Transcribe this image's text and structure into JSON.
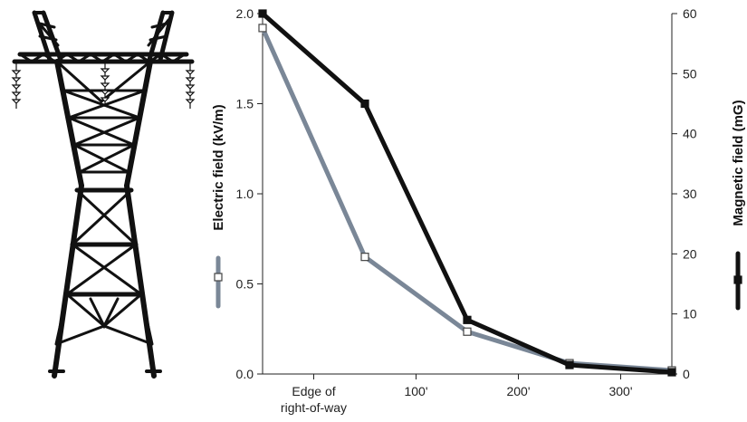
{
  "chart_data": {
    "type": "line",
    "x_categories": [
      "Edge of right-of-way",
      "100'",
      "200'",
      "300'"
    ],
    "x_tick_lines": [
      [
        "Edge of",
        "right-of-way"
      ],
      [
        "100'"
      ],
      [
        "200'"
      ],
      [
        "300'"
      ]
    ],
    "x_tick_positions": [
      0,
      100,
      200,
      300
    ],
    "xlim": [
      -50,
      350
    ],
    "left_axis": {
      "label": "Electric field (kV/m)",
      "ylim": [
        0,
        2.0
      ],
      "ticks": [
        "0.0",
        "0.5",
        "1.0",
        "1.5",
        "2.0"
      ],
      "tick_values": [
        0,
        0.5,
        1.0,
        1.5,
        2.0
      ]
    },
    "right_axis": {
      "label": "Magnetic field (mG)",
      "ylim": [
        0,
        60
      ],
      "ticks": [
        "0",
        "10",
        "20",
        "30",
        "40",
        "50",
        "60"
      ],
      "tick_values": [
        0,
        10,
        20,
        30,
        40,
        50,
        60
      ]
    },
    "series": [
      {
        "name": "Electric field",
        "axis": "left",
        "color": "#7a8797",
        "marker": "open-square",
        "x": [
          -50,
          50,
          150,
          250,
          350
        ],
        "y": [
          1.92,
          0.65,
          0.235,
          0.06,
          0.02
        ]
      },
      {
        "name": "Magnetic field",
        "axis": "right",
        "color": "#111111",
        "marker": "filled-square",
        "x": [
          -50,
          50,
          150,
          250,
          350
        ],
        "y": [
          60,
          45,
          9,
          1.5,
          0.3
        ]
      }
    ],
    "grid": false
  },
  "illustration": {
    "icon": "transmission-tower-icon",
    "color": "#111111"
  }
}
